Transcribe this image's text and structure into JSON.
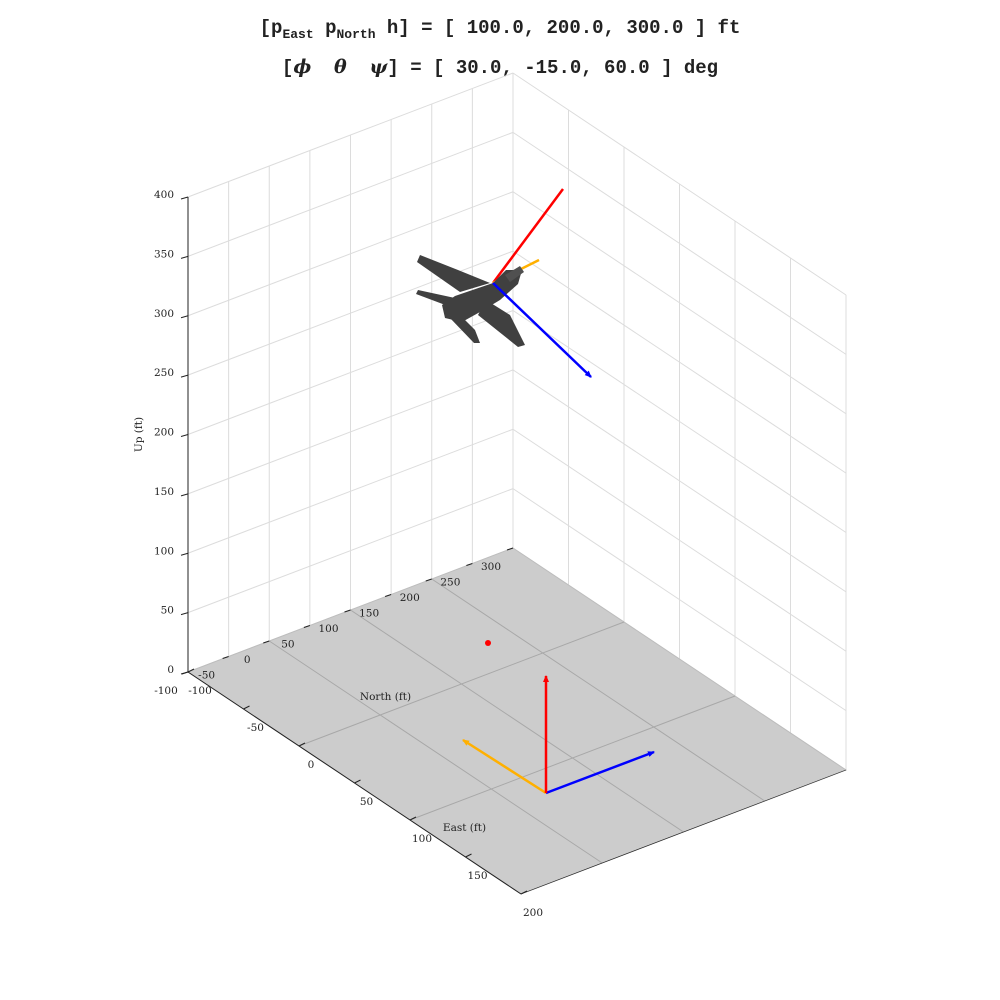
{
  "title": {
    "line1_prefix": "[p",
    "line1_sub1": "East",
    "line1_mid": " p",
    "line1_sub2": "North",
    "line1_suffix": " h] = [ 100.0, 200.0, 300.0 ] ft",
    "line2_open": "[",
    "phi": "ϕ",
    "theta": "θ",
    "psi": "ψ",
    "line2_suffix": "] = [  30.0, -15.0,  60.0 ] deg"
  },
  "chart_data": {
    "type": "scatter",
    "title": "[pEast pNorth h] = [ 100.0, 200.0, 300.0 ] ft / [φ θ ψ] = [ 30.0, -15.0, 60.0 ] deg",
    "xlabel": "East (ft)",
    "ylabel": "North (ft)",
    "zlabel": "Up (ft)",
    "xlim": [
      -100,
      200
    ],
    "ylim": [
      -100,
      300
    ],
    "zlim": [
      0,
      400
    ],
    "xticks": [
      -100,
      -50,
      0,
      50,
      100,
      150,
      200
    ],
    "yticks": [
      -100,
      -50,
      0,
      50,
      100,
      150,
      200,
      250,
      300
    ],
    "zticks": [
      0,
      50,
      100,
      150,
      200,
      250,
      300,
      350,
      400
    ],
    "grid": true,
    "aircraft_position": {
      "east": 100,
      "north": 200,
      "up": 300
    },
    "attitude_deg": {
      "phi": 30,
      "theta": -15,
      "psi": 60
    },
    "ground_marker": {
      "east": 100,
      "north": 200,
      "up": 0
    },
    "colors": {
      "ground": "#cccccc",
      "grid": "#dcdcdc",
      "east_axis": "#0000ff",
      "north_axis": "#ffb000",
      "up_axis": "#ff0000",
      "aircraft": "#404040"
    }
  }
}
